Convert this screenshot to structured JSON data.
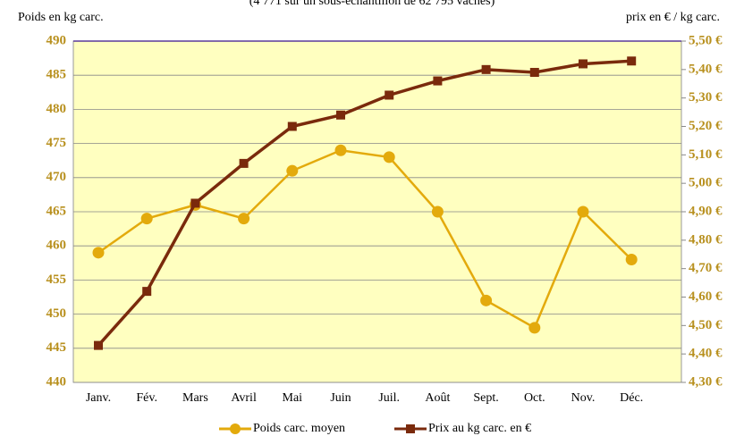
{
  "chart_data": {
    "type": "line",
    "subtitle": "(4 771 sur un sous-échantillon de 62 795 vaches)",
    "ylabel": "Poids en kg carc.",
    "y2label": "prix en € / kg carc.",
    "categories": [
      "Janv.",
      "Fév.",
      "Mars",
      "Avril",
      "Mai",
      "Juin",
      "Juil.",
      "Août",
      "Sept.",
      "Oct.",
      "Nov.",
      "Déc."
    ],
    "series": [
      {
        "name": "Poids carc. moyen",
        "color": "#e3aa0c",
        "marker": "circle",
        "values": [
          459,
          464,
          466,
          464,
          471,
          474,
          473,
          465,
          452,
          448,
          465,
          458
        ]
      },
      {
        "name": "Prix au kg carc. en €",
        "color": "#7a2a0c",
        "marker": "square",
        "axis": "y2",
        "values": [
          4.43,
          4.62,
          4.93,
          5.07,
          5.2,
          5.24,
          5.31,
          5.36,
          5.4,
          5.39,
          5.42,
          5.43
        ]
      }
    ],
    "ylim": [
      440,
      490
    ],
    "yticks": [
      440,
      445,
      450,
      455,
      460,
      465,
      470,
      475,
      480,
      485,
      490
    ],
    "y2lim": [
      4.3,
      5.5
    ],
    "y2ticks": [
      {
        "value": 4.3,
        "label": "4,30 €"
      },
      {
        "value": 4.4,
        "label": "4,40 €"
      },
      {
        "value": 4.5,
        "label": "4,50 €"
      },
      {
        "value": 4.6,
        "label": "4,60 €"
      },
      {
        "value": 4.7,
        "label": "4,70 €"
      },
      {
        "value": 4.8,
        "label": "4,80 €"
      },
      {
        "value": 4.9,
        "label": "4,90 €"
      },
      {
        "value": 5.0,
        "label": "5,00 €"
      },
      {
        "value": 5.1,
        "label": "5,10 €"
      },
      {
        "value": 5.2,
        "label": "5,20 €"
      },
      {
        "value": 5.3,
        "label": "5,30 €"
      },
      {
        "value": 5.4,
        "label": "5,40 €"
      },
      {
        "value": 5.5,
        "label": "5,50 €"
      }
    ],
    "grid": true,
    "legend": "bottom"
  }
}
